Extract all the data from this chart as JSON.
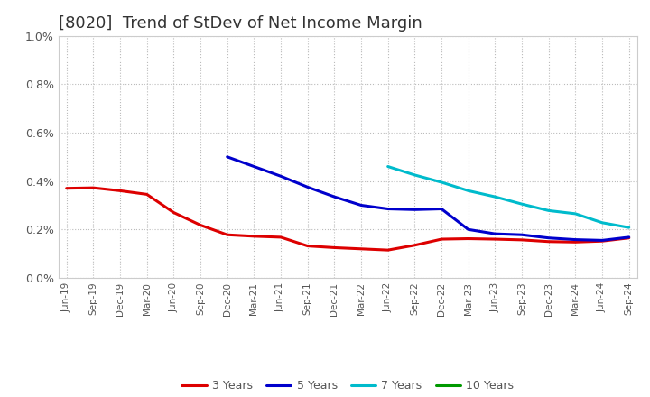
{
  "title": "[8020]  Trend of StDev of Net Income Margin",
  "ylim": [
    0.0,
    0.01
  ],
  "ytick_labels": [
    "0.0%",
    "0.2%",
    "0.4%",
    "0.6%",
    "0.8%",
    "1.0%"
  ],
  "ytick_values": [
    0.0,
    0.002,
    0.004,
    0.006,
    0.008,
    0.01
  ],
  "background_color": "#ffffff",
  "grid_color": "#bbbbbb",
  "title_fontsize": 13,
  "title_color": "#333333",
  "tick_color": "#555555",
  "legend_entries": [
    "3 Years",
    "5 Years",
    "7 Years",
    "10 Years"
  ],
  "line_colors": [
    "#dd0000",
    "#0000cc",
    "#00bbcc",
    "#009900"
  ],
  "line_width": 2.2,
  "x_labels": [
    "Jun-19",
    "Sep-19",
    "Dec-19",
    "Mar-20",
    "Jun-20",
    "Sep-20",
    "Dec-20",
    "Mar-21",
    "Jun-21",
    "Sep-21",
    "Dec-21",
    "Mar-22",
    "Jun-22",
    "Sep-22",
    "Dec-22",
    "Mar-23",
    "Jun-23",
    "Sep-23",
    "Dec-23",
    "Mar-24",
    "Jun-24",
    "Sep-24"
  ],
  "series_3yr": [
    0.0037,
    0.00372,
    0.0036,
    0.00345,
    0.0027,
    0.00218,
    0.00178,
    0.00172,
    0.00168,
    0.00132,
    0.00125,
    0.0012,
    0.00115,
    0.00135,
    0.0016,
    0.00162,
    0.0016,
    0.00157,
    0.0015,
    0.00148,
    0.00152,
    0.00165
  ],
  "series_5yr": [
    null,
    null,
    null,
    null,
    null,
    null,
    0.005,
    0.0046,
    0.0042,
    0.00375,
    0.00335,
    0.003,
    0.00285,
    0.00282,
    0.00285,
    0.002,
    0.00182,
    0.00178,
    0.00165,
    0.00158,
    0.00155,
    0.00168
  ],
  "series_7yr": [
    null,
    null,
    null,
    null,
    null,
    null,
    null,
    null,
    null,
    null,
    null,
    null,
    0.0046,
    0.00425,
    0.00395,
    0.0036,
    0.00335,
    0.00305,
    0.00278,
    0.00265,
    0.00228,
    0.00208
  ],
  "series_10yr": [
    null,
    null,
    null,
    null,
    null,
    null,
    null,
    null,
    null,
    null,
    null,
    null,
    null,
    null,
    null,
    null,
    null,
    null,
    null,
    null,
    null,
    null
  ]
}
